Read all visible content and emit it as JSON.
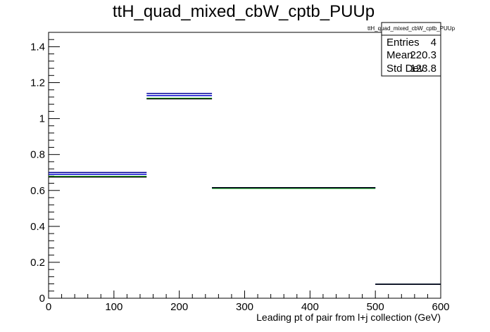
{
  "chart_data": {
    "type": "histogram",
    "title": "ttH_quad_mixed_cbW_cptb_PUUp",
    "xlabel": "Leading pt of pair from l+j collection (GeV)",
    "ylabel": "",
    "xlim": [
      0,
      600
    ],
    "ylim": [
      0,
      1.48
    ],
    "x_ticks": [
      "0",
      "100",
      "200",
      "300",
      "400",
      "500",
      "600"
    ],
    "y_ticks": [
      "0",
      "0.2",
      "0.4",
      "0.6",
      "0.8",
      "1",
      "1.2",
      "1.4"
    ],
    "grid": false,
    "colors": {
      "nominal": "#000000",
      "blue": "#0000cc",
      "green": "#00cc00"
    },
    "bins": [
      {
        "x_low": 0,
        "x_high": 150,
        "value": 0.675
      },
      {
        "x_low": 150,
        "x_high": 250,
        "value": 1.11
      },
      {
        "x_low": 250,
        "x_high": 500,
        "value": 0.615
      },
      {
        "x_low": 500,
        "x_high": 600,
        "value": 0.078
      }
    ],
    "series": [
      {
        "values": [
          0.675,
          1.11,
          0.615,
          0.078
        ],
        "color": "#000000"
      },
      {
        "values": [
          0.7,
          1.14,
          0.615,
          0.078
        ],
        "color": "#000099"
      },
      {
        "values": [
          0.69,
          1.128,
          0.615,
          0.078
        ],
        "color": "#0000cc"
      },
      {
        "values": [
          0.678,
          1.113,
          0.612,
          0.078
        ],
        "color": "#00cc00"
      }
    ],
    "stats": {
      "name": "ttH_quad_mixed_cbW_cptb_PUUp",
      "rows": [
        {
          "label": "Entries",
          "value": "4"
        },
        {
          "label": "Mean",
          "value": "220.3"
        },
        {
          "label": "Std Dev",
          "value": "123.8"
        }
      ]
    }
  }
}
